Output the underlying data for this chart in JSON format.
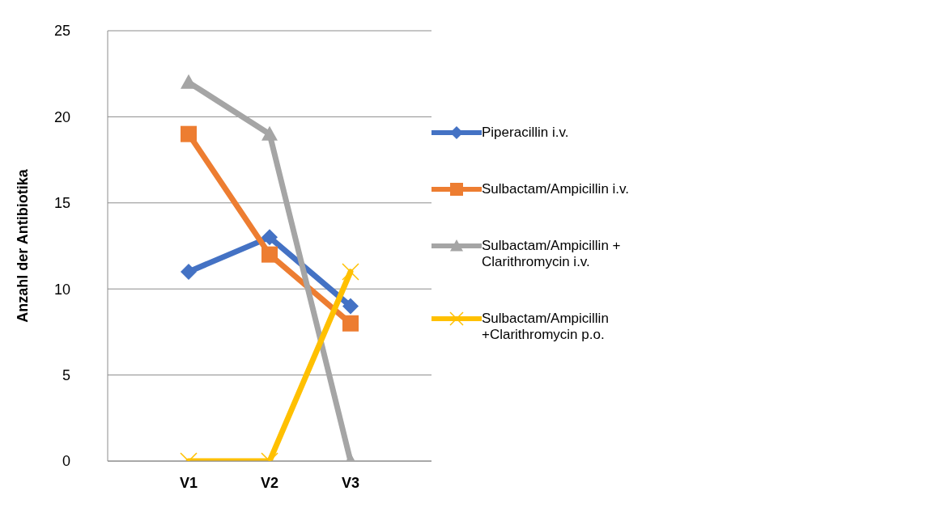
{
  "chart_data": {
    "type": "line",
    "ylabel": "Anzahl der Antibiotika",
    "categories": [
      null,
      "V1",
      "V2",
      "V3",
      null
    ],
    "series": [
      {
        "name": "Piperacillin i.v.",
        "color": "#4472c4",
        "marker": "diamond",
        "values": [
          null,
          11,
          13,
          9,
          null
        ]
      },
      {
        "name": "Sulbactam/Ampicillin i.v.",
        "color": "#ed7d31",
        "marker": "square",
        "values": [
          null,
          19,
          12,
          8,
          null
        ]
      },
      {
        "name": "Sulbactam/Ampicillin + Clarithromycin i.v.",
        "color": "#a5a5a5",
        "marker": "triangle",
        "values": [
          null,
          22,
          19,
          0,
          null
        ]
      },
      {
        "name": "Sulbactam/Ampicillin +Clarithromycin p.o.",
        "color": "#ffc000",
        "marker": "cross",
        "values": [
          null,
          0,
          0,
          11,
          null
        ]
      }
    ],
    "ylim": [
      0,
      25
    ],
    "yticks": [
      0,
      5,
      10,
      15,
      20,
      25
    ],
    "grid": "y",
    "legend": "right",
    "line_style": "solid"
  }
}
